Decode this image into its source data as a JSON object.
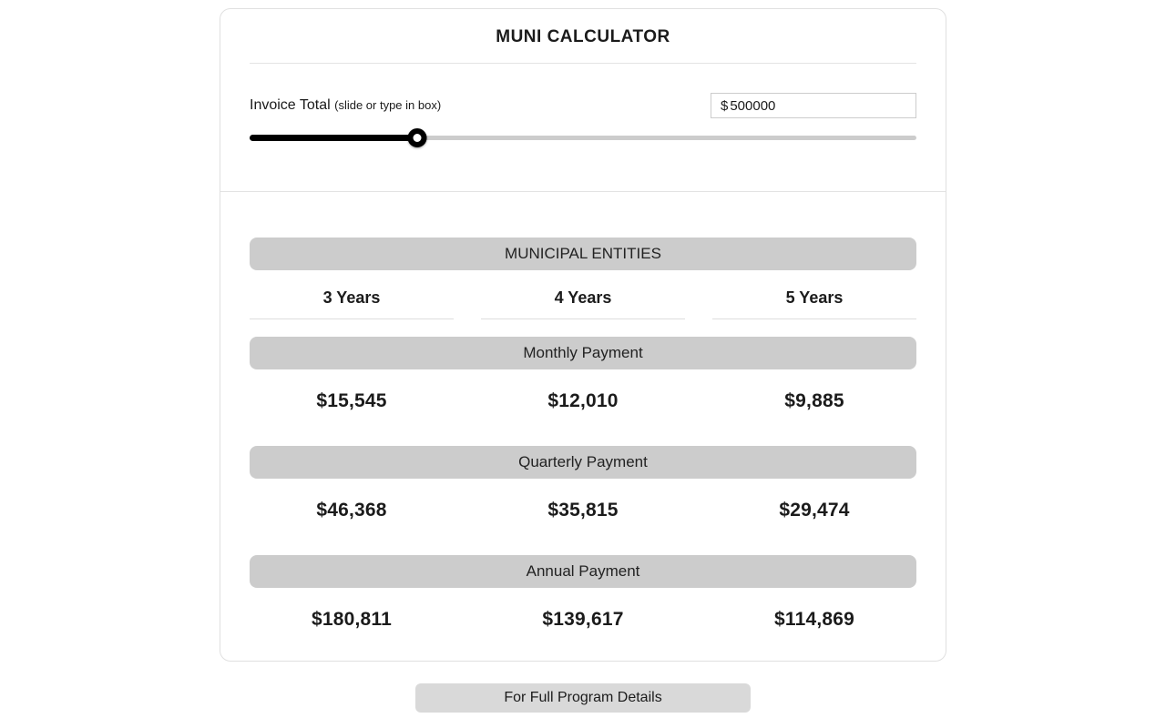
{
  "calculator": {
    "title": "MUNI CALCULATOR",
    "invoice": {
      "label": "Invoice Total",
      "hint": "(slide or type in box)",
      "currency_symbol": "$",
      "value": "500000",
      "slider_percent": 25.2
    },
    "results": {
      "section_title": "MUNICIPAL ENTITIES",
      "term_headers": [
        "3 Years",
        "4 Years",
        "5 Years"
      ],
      "rows": [
        {
          "label": "Monthly Payment",
          "values": [
            "$15,545",
            "$12,010",
            "$9,885"
          ]
        },
        {
          "label": "Quarterly Payment",
          "values": [
            "$46,368",
            "$35,815",
            "$29,474"
          ]
        },
        {
          "label": "Annual Payment",
          "values": [
            "$180,811",
            "$139,617",
            "$114,869"
          ]
        }
      ]
    },
    "footer_button": "For Full Program Details"
  },
  "colors": {
    "bar_background": "#cccccc",
    "button_background": "#d9d9d9",
    "slider_fill": "#000000",
    "slider_track": "#cccccc",
    "card_border": "#e0e0e0"
  }
}
